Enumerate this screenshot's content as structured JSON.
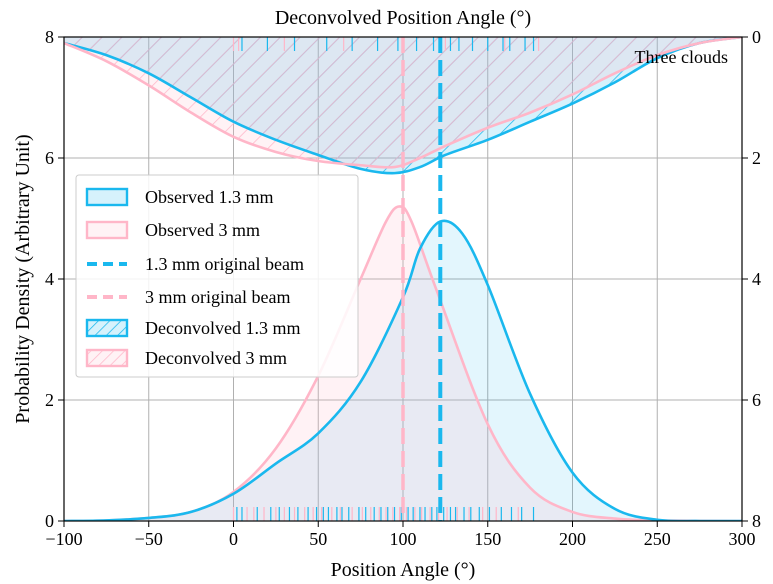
{
  "chart_data": {
    "type": "area",
    "annotation": "Three clouds",
    "xlabel": "Position Angle (°)",
    "ylabel": "Probability Density (Arbitrary Unit)",
    "top_xlabel": "Deconvolved Position Angle (°)",
    "xlim": [
      -100,
      300
    ],
    "ylim": [
      0,
      8
    ],
    "right_ylim": [
      8,
      0
    ],
    "x_ticks": [
      -100,
      -50,
      0,
      50,
      100,
      150,
      200,
      250,
      300
    ],
    "x_tick_labels": [
      "−100",
      "−50",
      "0",
      "50",
      "100",
      "150",
      "200",
      "250",
      "300"
    ],
    "y_ticks": [
      0,
      2,
      4,
      6,
      8
    ],
    "y_tick_labels": [
      "0",
      "2",
      "4",
      "6",
      "8"
    ],
    "right_y_ticks": [
      0,
      2,
      4,
      6,
      8
    ],
    "right_y_tick_labels": [
      "0",
      "2",
      "4",
      "6",
      "8"
    ],
    "grid": true,
    "legend_position": "center-left",
    "colors": {
      "c13": "#1ab8ee",
      "c3": "#ffb6c8"
    },
    "legend": [
      {
        "label": "Observed 1.3 mm",
        "style": "patch",
        "color": "#1ab8ee"
      },
      {
        "label": "Observed 3 mm",
        "style": "patch",
        "color": "#ffb6c8"
      },
      {
        "label": "1.3 mm original beam",
        "style": "dash",
        "color": "#1ab8ee"
      },
      {
        "label": "3 mm original beam",
        "style": "dash",
        "color": "#ffb6c8"
      },
      {
        "label": "Deconvolved 1.3 mm",
        "style": "hatch",
        "color": "#1ab8ee"
      },
      {
        "label": "Deconvolved 3 mm",
        "style": "hatch",
        "color": "#ffb6c8"
      }
    ],
    "series": [
      {
        "name": "Observed 1.3 mm",
        "axis": "left",
        "color": "#1ab8ee",
        "x": [
          -100,
          -75,
          -50,
          -25,
          0,
          25,
          50,
          75,
          100,
          110,
          122,
          135,
          150,
          175,
          200,
          225,
          250,
          275,
          300
        ],
        "y": [
          0,
          0.01,
          0.05,
          0.15,
          0.45,
          0.95,
          1.45,
          2.3,
          3.7,
          4.5,
          4.95,
          4.75,
          3.9,
          2.1,
          0.8,
          0.2,
          0.02,
          0,
          0
        ]
      },
      {
        "name": "Observed 3 mm",
        "axis": "left",
        "color": "#ffb6c8",
        "x": [
          -100,
          -75,
          -50,
          -25,
          0,
          25,
          50,
          75,
          90,
          98,
          105,
          120,
          150,
          175,
          200,
          225,
          250,
          300
        ],
        "y": [
          0,
          0.01,
          0.05,
          0.15,
          0.48,
          1.2,
          2.4,
          4.0,
          4.95,
          5.2,
          4.95,
          3.8,
          1.6,
          0.55,
          0.15,
          0.04,
          0.01,
          0
        ]
      },
      {
        "name": "Deconvolved 1.3 mm",
        "axis": "right",
        "color": "#1ab8ee",
        "x": [
          -100,
          -75,
          -50,
          -25,
          0,
          25,
          50,
          75,
          95,
          110,
          125,
          150,
          175,
          200,
          225,
          250,
          275,
          300
        ],
        "y": [
          0.1,
          0.3,
          0.6,
          1.0,
          1.4,
          1.7,
          1.95,
          2.18,
          2.25,
          2.15,
          1.95,
          1.7,
          1.4,
          1.1,
          0.75,
          0.35,
          0.1,
          0
        ]
      },
      {
        "name": "Deconvolved 3 mm",
        "axis": "right",
        "color": "#ffb6c8",
        "x": [
          -100,
          -75,
          -50,
          -25,
          0,
          25,
          50,
          75,
          95,
          110,
          125,
          150,
          175,
          200,
          225,
          250,
          275,
          300
        ],
        "y": [
          0.1,
          0.4,
          0.8,
          1.25,
          1.65,
          1.9,
          2.05,
          2.12,
          2.15,
          2.0,
          1.8,
          1.5,
          1.25,
          0.95,
          0.6,
          0.3,
          0.1,
          0
        ]
      }
    ],
    "vlines": [
      {
        "name": "1.3 mm original beam",
        "x": 122,
        "color": "#1ab8ee"
      },
      {
        "name": "3 mm original beam",
        "x": 100,
        "color": "#ffb6c8"
      }
    ],
    "rug_bottom": {
      "c13": [
        2,
        5,
        14,
        22,
        27,
        33,
        38,
        44,
        49,
        53,
        56,
        61,
        64,
        68,
        74,
        78,
        83,
        87,
        91,
        95,
        99,
        103,
        106,
        110,
        113,
        117,
        120,
        124,
        128,
        131,
        136,
        140,
        145,
        151,
        158,
        164,
        170,
        177
      ],
      "c3": [
        0,
        8,
        12,
        18,
        25,
        30,
        36,
        42,
        47,
        52,
        58,
        63,
        70,
        76,
        81,
        86,
        90,
        94,
        98,
        102,
        107,
        111,
        116,
        121,
        126,
        132,
        139,
        147,
        155,
        168
      ]
    },
    "rug_top": {
      "c13": [
        5,
        20,
        36,
        55,
        70,
        85,
        97,
        108,
        118,
        128,
        133,
        141,
        150,
        159,
        163,
        172,
        177
      ],
      "c3": [
        0,
        3,
        30,
        65,
        100,
        125,
        160,
        180
      ]
    }
  }
}
